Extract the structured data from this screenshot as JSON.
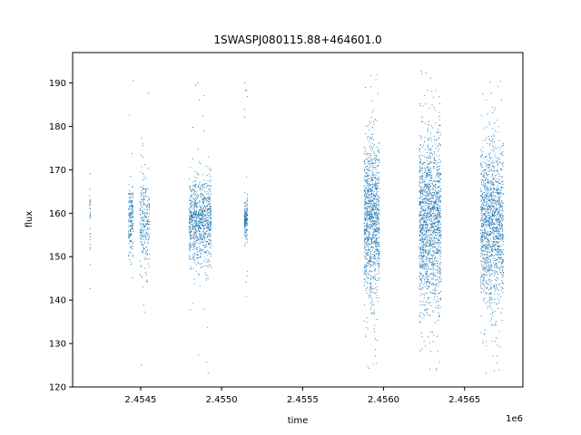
{
  "chart_data": {
    "type": "scatter",
    "title": "1SWASPJ080115.88+464601.0",
    "xlabel": "time",
    "ylabel": "flux",
    "x_offset_label": "1e6",
    "xlim": [
      2454080,
      2456860
    ],
    "ylim": [
      120,
      197
    ],
    "x_ticks": [
      2454500,
      2455000,
      2455500,
      2456000,
      2456500
    ],
    "x_tick_labels": [
      "2.4545",
      "2.4550",
      "2.4555",
      "2.4560",
      "2.4565"
    ],
    "y_ticks": [
      120,
      130,
      140,
      150,
      160,
      170,
      180,
      190
    ],
    "y_tick_labels": [
      "120",
      "130",
      "140",
      "150",
      "160",
      "170",
      "180",
      "190"
    ],
    "grid": false,
    "point_color": "#1f77b4",
    "segments": [
      {
        "x_start": 2454185,
        "x_end": 2454190,
        "y_center": 160.0,
        "y_spread": 4.5,
        "n": 30
      },
      {
        "x_start": 2454425,
        "x_end": 2454455,
        "y_center": 158.5,
        "y_spread": 4.0,
        "n": 180
      },
      {
        "x_start": 2454495,
        "x_end": 2454555,
        "y_center": 157.5,
        "y_spread": 5.5,
        "n": 260
      },
      {
        "x_start": 2454800,
        "x_end": 2454935,
        "y_center": 158.0,
        "y_spread": 5.0,
        "n": 900
      },
      {
        "x_start": 2455140,
        "x_end": 2455160,
        "y_center": 158.0,
        "y_spread": 2.5,
        "n": 160
      },
      {
        "x_start": 2455880,
        "x_end": 2455975,
        "y_center": 158.5,
        "y_spread": 9.0,
        "n": 1100
      },
      {
        "x_start": 2456220,
        "x_end": 2456355,
        "y_center": 158.0,
        "y_spread": 10.0,
        "n": 1500
      },
      {
        "x_start": 2456600,
        "x_end": 2456740,
        "y_center": 157.0,
        "y_spread": 9.5,
        "n": 1400
      }
    ]
  }
}
